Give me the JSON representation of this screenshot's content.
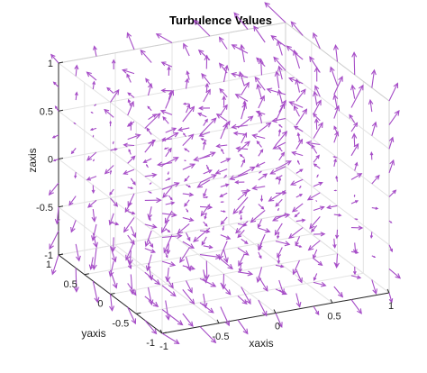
{
  "chart_data": {
    "type": "quiver3",
    "title": "Turbulence Values",
    "xlabel": "xaxis",
    "ylabel": "yaxis",
    "zlabel": "zaxis",
    "xlim": [
      -1,
      1
    ],
    "ylim": [
      -1,
      1
    ],
    "zlim": [
      -1,
      1
    ],
    "xticks": [
      "-1",
      "-0.5",
      "0",
      "0.5",
      "1"
    ],
    "yticks": [
      "-1",
      "-0.5",
      "0",
      "0.5",
      "1"
    ],
    "zticks": [
      "-1",
      "-0.5",
      "0",
      "0.5",
      "1"
    ],
    "grid": true,
    "color": "#a64dc7",
    "grid_points_per_axis": 7,
    "z_levels": [
      -1,
      -0.75,
      -0.5,
      -0.25,
      0,
      0.25,
      0.5,
      0.75,
      1
    ],
    "vector_field": "turbulent swirling field sampled on a 7x7 xy grid at each z level; arrows point predominantly downward near z=-1, swirl horizontally near z=0, and point upward near z=1"
  }
}
